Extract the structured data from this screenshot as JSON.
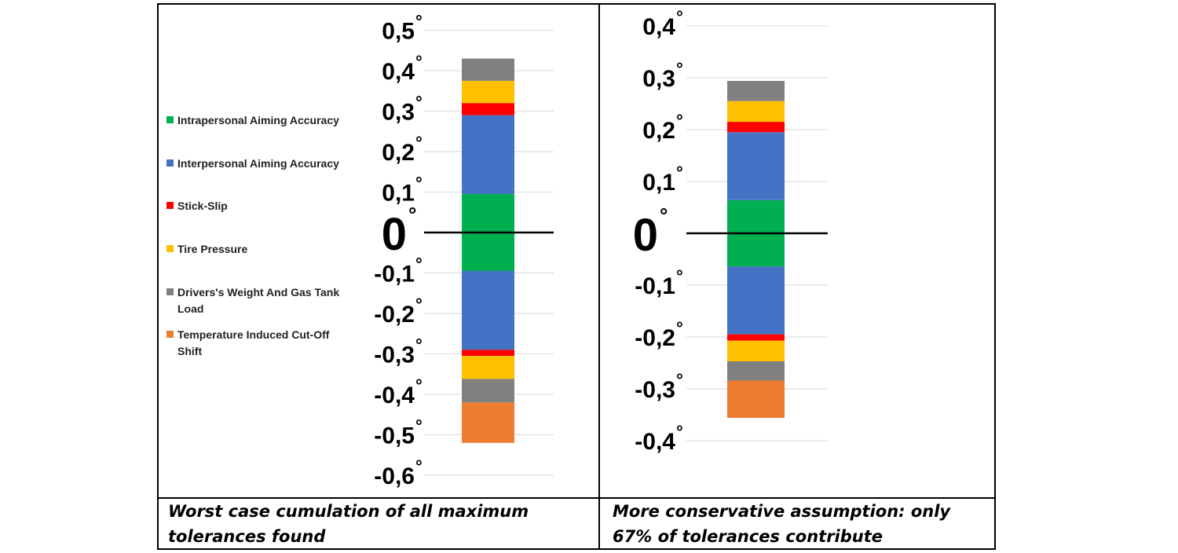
{
  "chart_data": [
    {
      "type": "bar",
      "stacked": true,
      "title": "",
      "caption": "Worst case cumulation of all maximum tolerances found",
      "unit_symbol": "°",
      "ylim": [
        -0.6,
        0.5
      ],
      "yticks": [
        {
          "value": 0.5,
          "label": "0,5"
        },
        {
          "value": 0.4,
          "label": "0,4"
        },
        {
          "value": 0.3,
          "label": "0,3"
        },
        {
          "value": 0.2,
          "label": "0,2"
        },
        {
          "value": 0.1,
          "label": "0,1"
        },
        {
          "value": 0.0,
          "label": "0"
        },
        {
          "value": -0.1,
          "label": "-0,1"
        },
        {
          "value": -0.2,
          "label": "-0,2"
        },
        {
          "value": -0.3,
          "label": "-0,3"
        },
        {
          "value": -0.4,
          "label": "-0,4"
        },
        {
          "value": -0.5,
          "label": "-0,5"
        },
        {
          "value": -0.6,
          "label": "-0,6"
        }
      ],
      "positive_stack": [
        {
          "series": "Intrapersonal Aiming Accuracy",
          "value": 0.095
        },
        {
          "series": "Interpersonal Aiming Accuracy",
          "value": 0.195
        },
        {
          "series": "Stick-Slip",
          "value": 0.03
        },
        {
          "series": "Tire Pressure",
          "value": 0.055
        },
        {
          "series": "Drivers's Weight And Gas Tank Load",
          "value": 0.055
        }
      ],
      "negative_stack": [
        {
          "series": "Intrapersonal Aiming Accuracy",
          "value": -0.095
        },
        {
          "series": "Interpersonal Aiming Accuracy",
          "value": -0.195
        },
        {
          "series": "Stick-Slip",
          "value": -0.015
        },
        {
          "series": "Tire Pressure",
          "value": -0.057
        },
        {
          "series": "Drivers's Weight And Gas Tank Load",
          "value": -0.058
        },
        {
          "series": "Temperature Induced Cut-Off Shift",
          "value": -0.1
        }
      ]
    },
    {
      "type": "bar",
      "stacked": true,
      "title": "",
      "caption": "More conservative assumption: only 67% of tolerances contribute",
      "unit_symbol": "°",
      "ylim": [
        -0.4,
        0.4
      ],
      "yticks": [
        {
          "value": 0.4,
          "label": "0,4"
        },
        {
          "value": 0.3,
          "label": "0,3"
        },
        {
          "value": 0.2,
          "label": "0,2"
        },
        {
          "value": 0.1,
          "label": "0,1"
        },
        {
          "value": 0.0,
          "label": "0"
        },
        {
          "value": -0.1,
          "label": "-0,1"
        },
        {
          "value": -0.2,
          "label": "-0,2"
        },
        {
          "value": -0.3,
          "label": "-0,3"
        },
        {
          "value": -0.4,
          "label": "-0,4"
        }
      ],
      "positive_stack": [
        {
          "series": "Intrapersonal Aiming Accuracy",
          "value": 0.064
        },
        {
          "series": "Interpersonal Aiming Accuracy",
          "value": 0.131
        },
        {
          "series": "Stick-Slip",
          "value": 0.02
        },
        {
          "series": "Tire Pressure",
          "value": 0.04
        },
        {
          "series": "Drivers's Weight And Gas Tank Load",
          "value": 0.039
        }
      ],
      "negative_stack": [
        {
          "series": "Intrapersonal Aiming Accuracy",
          "value": -0.064
        },
        {
          "series": "Interpersonal Aiming Accuracy",
          "value": -0.131
        },
        {
          "series": "Stick-Slip",
          "value": -0.012
        },
        {
          "series": "Tire Pressure",
          "value": -0.04
        },
        {
          "series": "Drivers's Weight And Gas Tank Load",
          "value": -0.037
        },
        {
          "series": "Temperature Induced Cut-Off Shift",
          "value": -0.072
        }
      ]
    }
  ],
  "legend": [
    {
      "name": "Intrapersonal Aiming Accuracy",
      "color": "#00b050"
    },
    {
      "name": "Interpersonal Aiming Accuracy",
      "color": "#4472c4"
    },
    {
      "name": "Stick-Slip",
      "color": "#ff0000"
    },
    {
      "name": "Tire Pressure",
      "color": "#ffc000"
    },
    {
      "name": "Drivers's Weight And Gas Tank Load",
      "color": "#808080"
    },
    {
      "name": "Temperature Induced Cut-Off Shift",
      "color": "#ed7d31"
    }
  ]
}
